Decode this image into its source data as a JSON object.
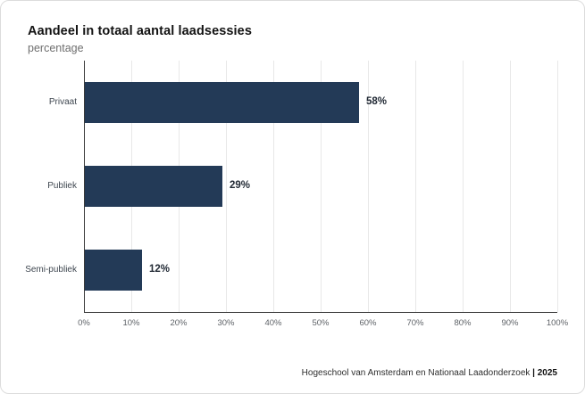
{
  "chart_data": {
    "type": "bar",
    "orientation": "horizontal",
    "title": "Aandeel in totaal aantal laadsessies",
    "subtitle": "percentage",
    "categories": [
      "Privaat",
      "Publiek",
      "Semi-publiek"
    ],
    "values": [
      58,
      29,
      12
    ],
    "value_labels": [
      "58%",
      "29%",
      "12%"
    ],
    "xlim": [
      0,
      100
    ],
    "x_tick_labels": [
      "0%",
      "10%",
      "20%",
      "30%",
      "40%",
      "50%",
      "60%",
      "70%",
      "80%",
      "90%",
      "100%"
    ],
    "grid": "vertical-gridlines-on",
    "legend": "none",
    "bar_color": "#233a57"
  },
  "footer": {
    "source": "Hogeschool van Amsterdam en Nationaal Laadonderzoek",
    "separator": "|",
    "year": "2025"
  }
}
